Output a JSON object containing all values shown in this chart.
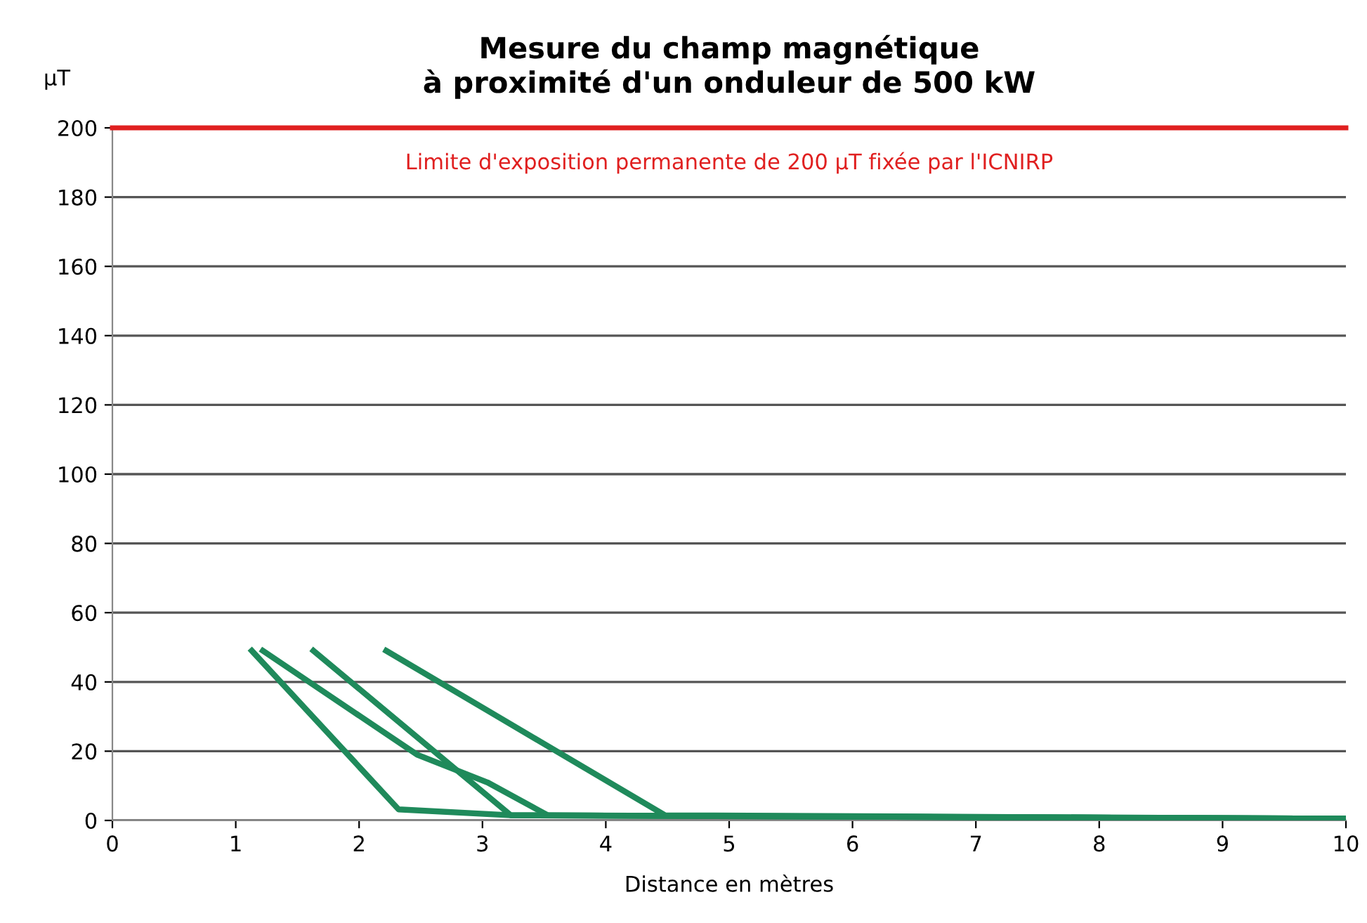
{
  "chart_data": {
    "type": "line",
    "title": "Mesure du champ magnétique\nà proximité d'un onduleur de 500 kW",
    "xlabel": "Distance en mètres",
    "ylabel": "µT",
    "series": [
      {
        "color": "#1f8a5b",
        "x": [
          1.13,
          2.32,
          3.23,
          10
        ],
        "values": [
          49,
          3.2,
          1.5,
          0.5
        ]
      },
      {
        "color": "#1f8a5b",
        "x": [
          1.22,
          2.47,
          3.04,
          3.53,
          10
        ],
        "values": [
          49,
          19,
          11,
          1.5,
          0.5
        ]
      },
      {
        "color": "#1f8a5b",
        "x": [
          1.63,
          3.23,
          10
        ],
        "values": [
          49,
          1.5,
          0.5
        ]
      },
      {
        "color": "#1f8a5b",
        "x": [
          2.22,
          4.48,
          10
        ],
        "values": [
          49,
          1.5,
          0.5
        ]
      }
    ],
    "xlim": [
      0,
      10
    ],
    "xticks": [
      0,
      1,
      2,
      3,
      4,
      5,
      6,
      7,
      8,
      9,
      10
    ],
    "ylim": [
      0,
      200
    ],
    "yticks": [
      0,
      20,
      40,
      60,
      80,
      100,
      120,
      140,
      160,
      180,
      200
    ],
    "grid": "y",
    "marker": "none",
    "line_style": "solid",
    "ref_lines": [
      {
        "axis": "y",
        "value": 200,
        "label": "Limite d'exposition permanente de 200 µT fixée par l'ICNIRP",
        "color": "#e02020"
      }
    ]
  }
}
